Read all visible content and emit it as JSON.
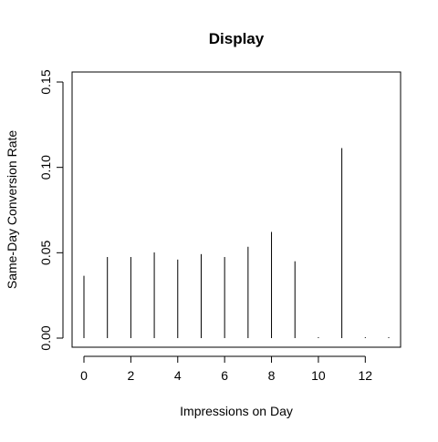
{
  "chart_data": {
    "type": "bar",
    "title": "Display",
    "xlabel": "Impressions on Day",
    "ylabel": "Same-Day Conversion Rate",
    "x": [
      0,
      1,
      2,
      3,
      4,
      5,
      6,
      7,
      8,
      9,
      10,
      11,
      12,
      13
    ],
    "values": [
      0.0365,
      0.0475,
      0.0475,
      0.0502,
      0.046,
      0.0492,
      0.0475,
      0.0535,
      0.0622,
      0.045,
      0.0,
      0.1113,
      0.0,
      0.0
    ],
    "xlim": [
      0,
      13
    ],
    "ylim": [
      0,
      0.15
    ],
    "xticks": [
      0,
      2,
      4,
      6,
      8,
      10,
      12
    ],
    "xtick_labels": [
      "0",
      "2",
      "4",
      "6",
      "8",
      "10",
      "12"
    ],
    "yticks": [
      0,
      0.05,
      0.1,
      0.15
    ],
    "ytick_labels": [
      "0.00",
      "0.05",
      "0.10",
      "0.15"
    ],
    "grid": false,
    "legend": "none",
    "bar_color": "#000000",
    "axis_color": "#000000"
  }
}
